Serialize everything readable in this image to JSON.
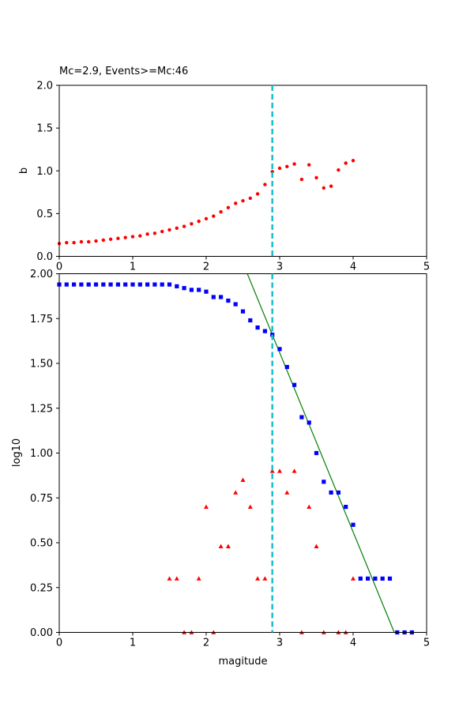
{
  "chart_data": [
    {
      "type": "scatter",
      "title": "Mc=2.9, Events>=Mc:46",
      "xlabel": "",
      "ylabel": "b",
      "xlim": [
        0,
        5
      ],
      "ylim": [
        0,
        2.0
      ],
      "xticks": [
        "0",
        "1",
        "2",
        "3",
        "4",
        "5"
      ],
      "yticks": [
        "0.0",
        "0.5",
        "1.0",
        "1.5",
        "2.0"
      ],
      "grid": false,
      "mc_line": {
        "x": 2.9,
        "color": "#17becf",
        "style": "dashed"
      },
      "series": [
        {
          "marker": "circle",
          "color": "#ff0000",
          "points": [
            [
              0.0,
              0.15
            ],
            [
              0.1,
              0.16
            ],
            [
              0.2,
              0.16
            ],
            [
              0.3,
              0.17
            ],
            [
              0.4,
              0.17
            ],
            [
              0.5,
              0.18
            ],
            [
              0.6,
              0.19
            ],
            [
              0.7,
              0.2
            ],
            [
              0.8,
              0.21
            ],
            [
              0.9,
              0.22
            ],
            [
              1.0,
              0.23
            ],
            [
              1.1,
              0.24
            ],
            [
              1.2,
              0.26
            ],
            [
              1.3,
              0.27
            ],
            [
              1.4,
              0.29
            ],
            [
              1.5,
              0.31
            ],
            [
              1.6,
              0.33
            ],
            [
              1.7,
              0.35
            ],
            [
              1.8,
              0.38
            ],
            [
              1.9,
              0.41
            ],
            [
              2.0,
              0.44
            ],
            [
              2.1,
              0.47
            ],
            [
              2.2,
              0.52
            ],
            [
              2.3,
              0.57
            ],
            [
              2.4,
              0.62
            ],
            [
              2.5,
              0.65
            ],
            [
              2.6,
              0.68
            ],
            [
              2.7,
              0.73
            ],
            [
              2.8,
              0.84
            ],
            [
              2.9,
              0.99
            ],
            [
              3.0,
              1.03
            ],
            [
              3.1,
              1.05
            ],
            [
              3.2,
              1.08
            ],
            [
              3.3,
              0.9
            ],
            [
              3.4,
              1.07
            ],
            [
              3.5,
              0.92
            ],
            [
              3.6,
              0.8
            ],
            [
              3.7,
              0.82
            ],
            [
              3.8,
              1.01
            ],
            [
              3.9,
              1.09
            ],
            [
              4.0,
              1.12
            ]
          ]
        }
      ]
    },
    {
      "type": "scatter",
      "title": "",
      "xlabel": "magitude",
      "ylabel": "log10",
      "xlim": [
        0,
        5
      ],
      "ylim": [
        0,
        2.0
      ],
      "xticks": [
        "0",
        "1",
        "2",
        "3",
        "4",
        "5"
      ],
      "yticks": [
        "0.00",
        "0.25",
        "0.50",
        "0.75",
        "1.00",
        "1.25",
        "1.50",
        "1.75",
        "2.00"
      ],
      "grid": false,
      "mc_line": {
        "x": 2.9,
        "color": "#17becf",
        "style": "dashed"
      },
      "fit_line": {
        "color": "#008000",
        "points": [
          [
            2.56,
            2.0
          ],
          [
            4.56,
            0.0
          ]
        ]
      },
      "series": [
        {
          "name": "",
          "marker": "square",
          "color": "#0000ff",
          "points": [
            [
              0.0,
              1.94
            ],
            [
              0.1,
              1.94
            ],
            [
              0.2,
              1.94
            ],
            [
              0.3,
              1.94
            ],
            [
              0.4,
              1.94
            ],
            [
              0.5,
              1.94
            ],
            [
              0.6,
              1.94
            ],
            [
              0.7,
              1.94
            ],
            [
              0.8,
              1.94
            ],
            [
              0.9,
              1.94
            ],
            [
              1.0,
              1.94
            ],
            [
              1.1,
              1.94
            ],
            [
              1.2,
              1.94
            ],
            [
              1.3,
              1.94
            ],
            [
              1.4,
              1.94
            ],
            [
              1.5,
              1.94
            ],
            [
              1.6,
              1.93
            ],
            [
              1.7,
              1.92
            ],
            [
              1.8,
              1.91
            ],
            [
              1.9,
              1.91
            ],
            [
              2.0,
              1.9
            ],
            [
              2.1,
              1.87
            ],
            [
              2.2,
              1.87
            ],
            [
              2.3,
              1.85
            ],
            [
              2.4,
              1.83
            ],
            [
              2.5,
              1.79
            ],
            [
              2.6,
              1.74
            ],
            [
              2.7,
              1.7
            ],
            [
              2.8,
              1.68
            ],
            [
              2.9,
              1.66
            ],
            [
              3.0,
              1.58
            ],
            [
              3.1,
              1.48
            ],
            [
              3.2,
              1.38
            ],
            [
              3.3,
              1.2
            ],
            [
              3.4,
              1.17
            ],
            [
              3.5,
              1.0
            ],
            [
              3.6,
              0.84
            ],
            [
              3.7,
              0.78
            ],
            [
              3.8,
              0.78
            ],
            [
              3.9,
              0.7
            ],
            [
              4.0,
              0.6
            ],
            [
              4.1,
              0.3
            ],
            [
              4.2,
              0.3
            ],
            [
              4.3,
              0.3
            ],
            [
              4.4,
              0.3
            ],
            [
              4.5,
              0.3
            ],
            [
              4.6,
              0.0
            ],
            [
              4.7,
              0.0
            ],
            [
              4.8,
              0.0
            ]
          ]
        },
        {
          "name": "",
          "marker": "triangle",
          "color": "#ff0000",
          "points": [
            [
              1.5,
              0.3
            ],
            [
              1.6,
              0.3
            ],
            [
              1.7,
              0.0
            ],
            [
              1.8,
              0.0
            ],
            [
              1.9,
              0.3
            ],
            [
              2.0,
              0.7
            ],
            [
              2.1,
              0.0
            ],
            [
              2.2,
              0.48
            ],
            [
              2.3,
              0.48
            ],
            [
              2.4,
              0.78
            ],
            [
              2.5,
              0.85
            ],
            [
              2.6,
              0.7
            ],
            [
              2.7,
              0.3
            ],
            [
              2.8,
              0.3
            ],
            [
              2.9,
              0.9
            ],
            [
              3.0,
              0.9
            ],
            [
              3.1,
              0.78
            ],
            [
              3.2,
              0.9
            ],
            [
              3.3,
              0.0
            ],
            [
              3.4,
              0.7
            ],
            [
              3.5,
              0.48
            ],
            [
              3.6,
              0.0
            ],
            [
              3.8,
              0.0
            ],
            [
              3.9,
              0.0
            ],
            [
              4.0,
              0.3
            ]
          ]
        }
      ]
    }
  ]
}
